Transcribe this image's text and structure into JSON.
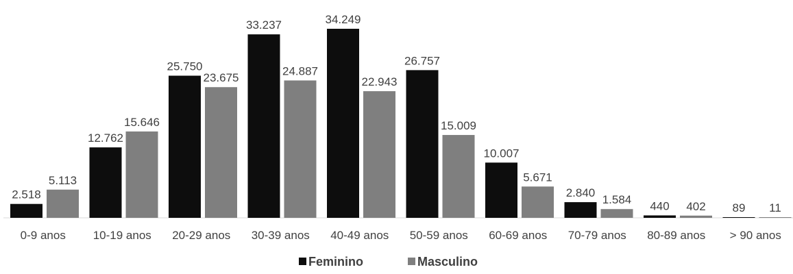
{
  "chart_data": {
    "type": "bar",
    "categories": [
      "0-9 anos",
      "10-19 anos",
      "20-29 anos",
      "30-39 anos",
      "40-49 anos",
      "50-59 anos",
      "60-69 anos",
      "70-79 anos",
      "80-89 anos",
      "> 90 anos"
    ],
    "series": [
      {
        "name": "Feminino",
        "color": "#0d0d0d",
        "values": [
          2518,
          12762,
          25750,
          33237,
          34249,
          26757,
          10007,
          2840,
          440,
          89
        ],
        "labels": [
          "2.518",
          "12.762",
          "25.750",
          "33.237",
          "34.249",
          "26.757",
          "10.007",
          "2.840",
          "440",
          "89"
        ]
      },
      {
        "name": "Masculino",
        "color": "#7f7f7f",
        "values": [
          5113,
          15646,
          23675,
          24887,
          22943,
          15009,
          5671,
          1584,
          402,
          11
        ],
        "labels": [
          "5.113",
          "15.646",
          "23.675",
          "24.887",
          "22.943",
          "15.009",
          "5.671",
          "1.584",
          "402",
          "11"
        ]
      }
    ],
    "title": "",
    "xlabel": "",
    "ylabel": "",
    "ylim": [
      0,
      34249
    ],
    "grid": false,
    "legend_position": "bottom-center"
  }
}
